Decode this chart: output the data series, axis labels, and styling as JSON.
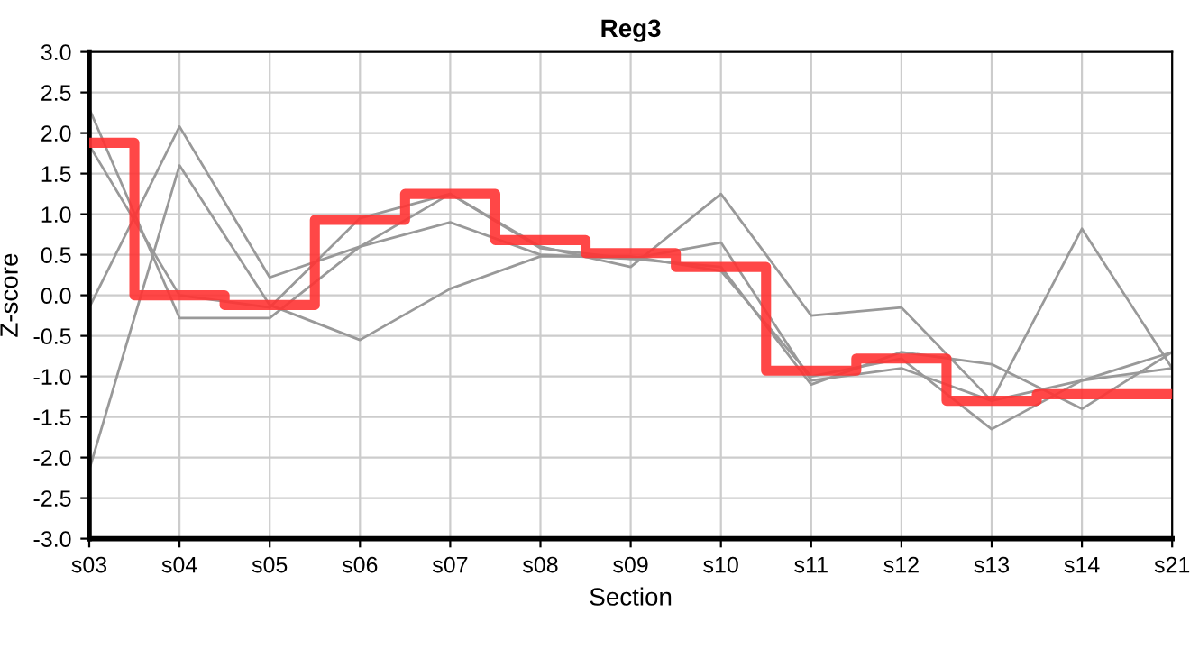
{
  "chart_data": {
    "type": "line",
    "title": "Reg3",
    "xlabel": "Section",
    "ylabel": "Z-score",
    "categories": [
      "s03",
      "s04",
      "s05",
      "s06",
      "s07",
      "s08",
      "s09",
      "s10",
      "s11",
      "s12",
      "s13",
      "s14",
      "s21"
    ],
    "series": [
      {
        "color": "#999999",
        "values": [
          2.3,
          -0.28,
          -0.28,
          0.6,
          0.9,
          0.5,
          0.45,
          0.65,
          -1.05,
          -0.9,
          -1.3,
          -1.05,
          -0.7
        ]
      },
      {
        "color": "#999999",
        "values": [
          1.85,
          0.0,
          -0.15,
          0.95,
          1.25,
          0.58,
          0.45,
          0.35,
          -1.1,
          -0.7,
          -0.85,
          -1.4,
          -0.7
        ]
      },
      {
        "color": "#999999",
        "values": [
          -0.15,
          2.08,
          0.22,
          0.6,
          1.25,
          0.6,
          0.35,
          1.25,
          -0.25,
          -0.15,
          -1.3,
          0.82,
          -0.9
        ]
      },
      {
        "color": "#999999",
        "values": [
          -2.15,
          1.6,
          -0.12,
          -0.55,
          0.08,
          0.48,
          0.48,
          0.3,
          -1.0,
          -0.78,
          -1.65,
          -1.05,
          -0.9
        ]
      },
      {
        "type": "step",
        "color": "#ff3333",
        "values": [
          1.88,
          0.0,
          -0.12,
          0.93,
          1.25,
          0.68,
          0.52,
          0.35,
          -0.93,
          -0.78,
          -1.3,
          -1.22,
          -1.22
        ]
      }
    ],
    "ylim": [
      -3.0,
      3.0
    ],
    "yticks": [
      {
        "value": -3,
        "label": "-3.0"
      },
      {
        "value": -2.5,
        "label": "-2.5"
      },
      {
        "value": -2,
        "label": "-2.0"
      },
      {
        "value": -1.5,
        "label": "-1.5"
      },
      {
        "value": -1,
        "label": "-1.0"
      },
      {
        "value": -0.5,
        "label": "-0.5"
      },
      {
        "value": 0,
        "label": "0.0"
      },
      {
        "value": 0.5,
        "label": "0.5"
      },
      {
        "value": 1,
        "label": "1.0"
      },
      {
        "value": 1.5,
        "label": "1.5"
      },
      {
        "value": 2,
        "label": "2.0"
      },
      {
        "value": 2.5,
        "label": "2.5"
      },
      {
        "value": 3,
        "label": "3.0"
      }
    ],
    "grid": true
  }
}
